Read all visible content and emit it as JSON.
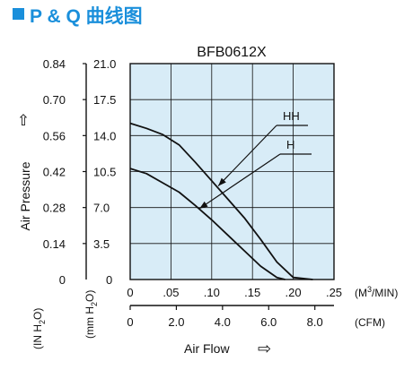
{
  "header": {
    "title": "P & Q 曲线图",
    "accent_color": "#1a8fdb"
  },
  "chart_data": {
    "type": "line",
    "title": "BFB0612X",
    "xlabel": "Air Flow",
    "ylabel": "Air Pressure",
    "plot_background": "#d8ecf7",
    "grid": true,
    "xlim": [
      0,
      0.25
    ],
    "x_unit": "(M3/MIN)",
    "x_ticks": [
      "0",
      ".05",
      ".10",
      ".15",
      ".20",
      ".25"
    ],
    "x2_unit": "(CFM)",
    "x2_ticks": [
      "0",
      "2.0",
      "4.0",
      "6.0",
      "8.0"
    ],
    "ylim": [
      0,
      21.0
    ],
    "y_unit": "(mm H2O)",
    "y_ticks": [
      "0",
      "3.5",
      "7.0",
      "10.5",
      "14.0",
      "17.5",
      "21.0"
    ],
    "y2_unit": "(IN H2O)",
    "y2_ticks": [
      "0",
      "0.14",
      "0.28",
      "0.42",
      "0.56",
      "0.70",
      "0.84"
    ],
    "series": [
      {
        "name": "HH",
        "x": [
          0,
          0.02,
          0.04,
          0.06,
          0.08,
          0.1,
          0.12,
          0.14,
          0.16,
          0.18,
          0.2,
          0.224
        ],
        "y": [
          15.2,
          14.7,
          14.1,
          13.1,
          11.4,
          9.6,
          7.8,
          6.0,
          3.9,
          1.7,
          0.2,
          0
        ]
      },
      {
        "name": "H",
        "x": [
          0,
          0.02,
          0.04,
          0.06,
          0.08,
          0.1,
          0.12,
          0.14,
          0.16,
          0.18,
          0.19
        ],
        "y": [
          10.8,
          10.3,
          9.4,
          8.5,
          7.2,
          5.8,
          4.3,
          2.8,
          1.3,
          0.2,
          0
        ]
      }
    ],
    "annotations": [
      {
        "label": "HH",
        "series": "HH",
        "x": 0.108,
        "y": 9.1
      },
      {
        "label": "H",
        "series": "H",
        "x": 0.085,
        "y": 6.9
      }
    ],
    "footer_arrow": "⇨",
    "axis_arrow": "⇧"
  }
}
